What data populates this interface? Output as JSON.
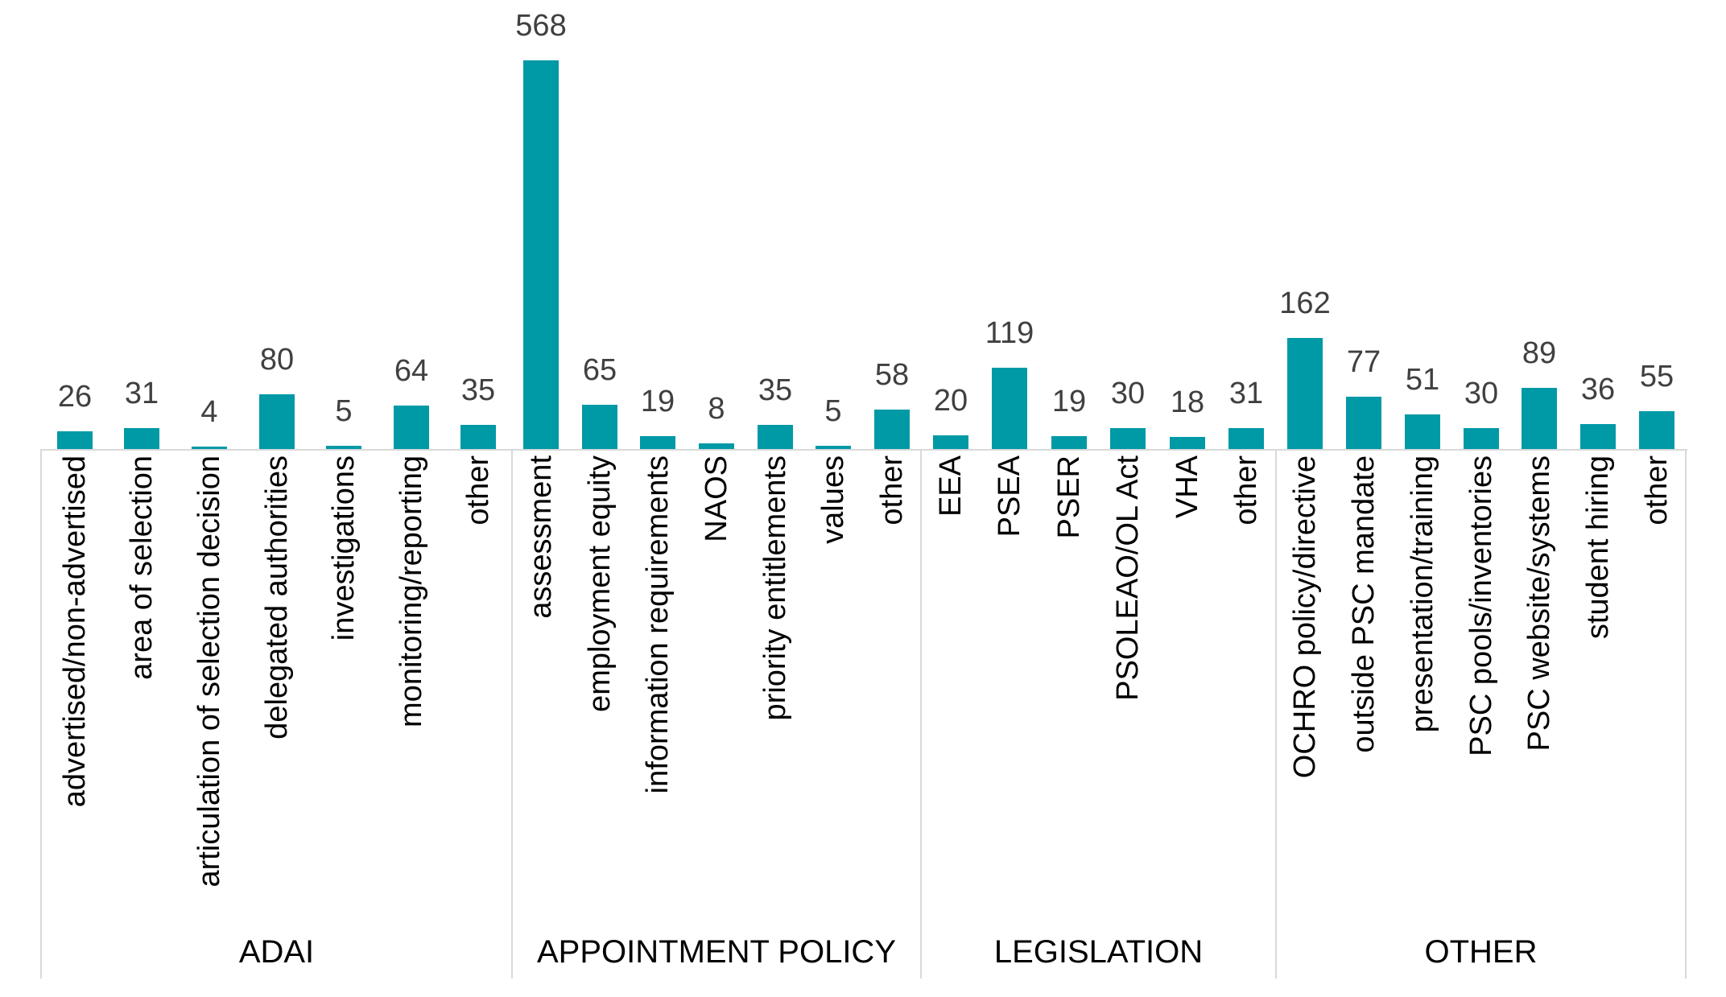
{
  "chart_data": {
    "type": "bar",
    "title": "",
    "orientation": "vertical",
    "grid": false,
    "legend": false,
    "value_labels_position": "outside-end",
    "ylim": [
      0,
      600
    ],
    "bar_color": "#0099A6",
    "value_label_color": "#404040",
    "category_label_color": "#000000",
    "group_label_color": "#000000",
    "axis_line_color": "#D9D9D9",
    "groups": [
      {
        "label": "ADAI",
        "categories": [
          "advertised/non-advertised",
          "area of selection",
          "articulation of selection decision",
          "delegated authorities",
          "investigations",
          "monitoring/reporting",
          "other"
        ],
        "values": [
          26,
          31,
          4,
          80,
          5,
          64,
          35
        ]
      },
      {
        "label": "APPOINTMENT POLICY",
        "categories": [
          "assessment",
          "employment equity",
          "information requirements",
          "NAOS",
          "priority entitlements",
          "values",
          "other"
        ],
        "values": [
          568,
          65,
          19,
          8,
          35,
          5,
          58
        ]
      },
      {
        "label": "LEGISLATION",
        "categories": [
          "EEA",
          "PSEA",
          "PSER",
          "PSOLEAO/OL Act",
          "VHA",
          "other"
        ],
        "values": [
          20,
          119,
          19,
          30,
          18,
          31
        ]
      },
      {
        "label": "OTHER",
        "categories": [
          "OCHRO policy/directive",
          "outside PSC mandate",
          "presentation/training",
          "PSC pools/inventories",
          "PSC website/systems",
          "student hiring",
          "other"
        ],
        "values": [
          162,
          77,
          51,
          30,
          89,
          36,
          55
        ]
      }
    ]
  }
}
